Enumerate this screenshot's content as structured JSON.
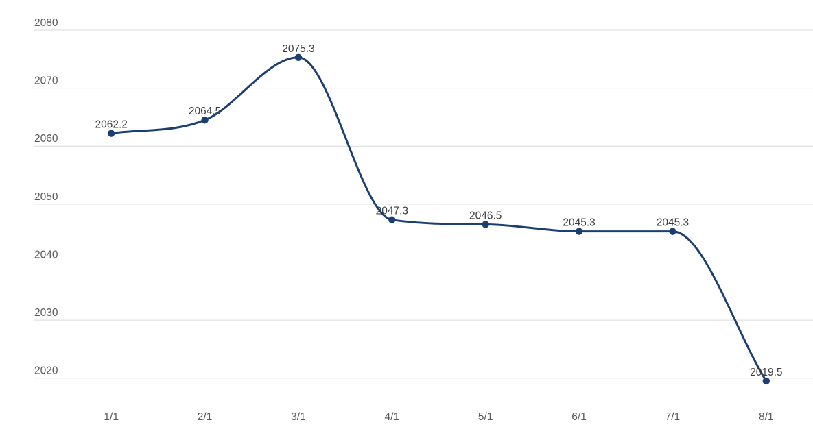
{
  "chart_data": {
    "type": "line",
    "title": "",
    "xlabel": "",
    "ylabel": "",
    "categories": [
      "1/1",
      "2/1",
      "3/1",
      "4/1",
      "5/1",
      "6/1",
      "7/1",
      "8/1"
    ],
    "series": [
      {
        "name": "series-1",
        "values": [
          2062.2,
          2064.5,
          2075.3,
          2047.3,
          2046.5,
          2045.3,
          2045.3,
          2019.5
        ],
        "data_labels": [
          "2062.2",
          "2064.5",
          "2075.3",
          "2047.3",
          "2046.5",
          "2045.3",
          "2045.3",
          "2019.5"
        ]
      }
    ],
    "y_ticks": [
      2020,
      2030,
      2040,
      2050,
      2060,
      2070,
      2080
    ],
    "y_tick_labels": [
      "2020",
      "2030",
      "2040",
      "2050",
      "2060",
      "2070",
      "2080"
    ],
    "ylim": [
      2020,
      2080
    ],
    "grid": "horizontal",
    "legend_position": "none",
    "line_style": "smooth",
    "markers": "filled-circle",
    "colors": {
      "line": "#1b3f70",
      "marker": "#1b3f70",
      "grid": "#d9d9d9",
      "axis_text": "#595959",
      "data_label_text": "#3d3d3d",
      "background": "#ffffff"
    }
  }
}
